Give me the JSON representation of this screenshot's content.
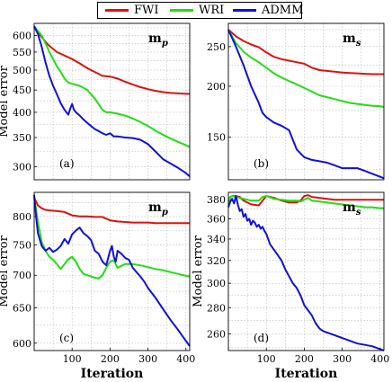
{
  "legend": {
    "items": [
      {
        "label": "FWI",
        "color": "#e01010"
      },
      {
        "label": "WRI",
        "color": "#20e010"
      },
      {
        "label": "ADMM",
        "color": "#1010e0"
      }
    ]
  },
  "chart_data": [
    {
      "type": "line",
      "panel_tag": "(a)",
      "corner_label": "m_p",
      "ylabel": "Model error",
      "xlabel": "",
      "xlim": [
        0,
        410
      ],
      "ylim": [
        280,
        640
      ],
      "y_scale": "log",
      "yticks": [
        300,
        350,
        400,
        450,
        500,
        550,
        600
      ],
      "grid": true,
      "series": [
        {
          "name": "FWI",
          "color": "#e01010",
          "x": [
            0,
            10,
            20,
            30,
            40,
            60,
            80,
            100,
            120,
            140,
            160,
            180,
            200,
            220,
            240,
            260,
            280,
            300,
            320,
            340,
            360,
            380,
            400,
            410
          ],
          "y": [
            630,
            610,
            595,
            580,
            568,
            550,
            540,
            530,
            518,
            505,
            495,
            485,
            483,
            478,
            470,
            463,
            457,
            452,
            448,
            445,
            443,
            442,
            441,
            441
          ]
        },
        {
          "name": "WRI",
          "color": "#20e010",
          "x": [
            0,
            10,
            20,
            30,
            40,
            50,
            60,
            70,
            80,
            90,
            100,
            120,
            140,
            160,
            180,
            190,
            200,
            220,
            240,
            260,
            280,
            300,
            320,
            340,
            360,
            380,
            400,
            410
          ],
          "y": [
            630,
            615,
            600,
            575,
            550,
            530,
            510,
            495,
            478,
            468,
            465,
            460,
            450,
            430,
            405,
            400,
            400,
            397,
            393,
            387,
            380,
            372,
            363,
            355,
            348,
            342,
            336,
            333
          ]
        },
        {
          "name": "ADMM",
          "color": "#1010e0",
          "x": [
            0,
            10,
            20,
            30,
            40,
            50,
            60,
            70,
            80,
            90,
            95,
            100,
            105,
            110,
            120,
            130,
            140,
            150,
            160,
            170,
            180,
            190,
            200,
            210,
            220,
            240,
            260,
            280,
            300,
            320,
            340,
            360,
            380,
            400,
            410
          ],
          "y": [
            630,
            605,
            565,
            520,
            485,
            460,
            440,
            420,
            405,
            395,
            408,
            418,
            405,
            400,
            393,
            385,
            378,
            372,
            366,
            362,
            358,
            355,
            358,
            352,
            352,
            350,
            349,
            346,
            338,
            325,
            312,
            305,
            298,
            290,
            285
          ]
        }
      ]
    },
    {
      "type": "line",
      "panel_tag": "(b)",
      "corner_label": "m_s",
      "ylabel": "",
      "xlabel": "",
      "xlim": [
        0,
        410
      ],
      "ylim": [
        118,
        285
      ],
      "y_scale": "log",
      "yticks": [
        150,
        200,
        250
      ],
      "grid": true,
      "series": [
        {
          "name": "FWI",
          "color": "#e01010",
          "x": [
            0,
            20,
            40,
            60,
            80,
            100,
            120,
            140,
            160,
            180,
            200,
            220,
            240,
            260,
            280,
            300,
            320,
            340,
            360,
            380,
            400,
            410
          ],
          "y": [
            275,
            265,
            258,
            253,
            249,
            242,
            236,
            233,
            231,
            229,
            227,
            222,
            219,
            218,
            217,
            216,
            215.5,
            215,
            214.5,
            214,
            214,
            214
          ]
        },
        {
          "name": "WRI",
          "color": "#20e010",
          "x": [
            0,
            20,
            40,
            60,
            80,
            100,
            120,
            140,
            160,
            180,
            200,
            220,
            240,
            260,
            280,
            300,
            320,
            340,
            360,
            380,
            400,
            410
          ],
          "y": [
            275,
            255,
            243,
            235,
            229,
            222,
            215,
            210,
            206,
            202,
            198,
            194,
            190,
            188,
            186,
            184,
            182,
            181,
            180,
            179,
            178.5,
            178
          ]
        },
        {
          "name": "ADMM",
          "color": "#1010e0",
          "x": [
            0,
            20,
            40,
            60,
            80,
            90,
            100,
            120,
            140,
            160,
            180,
            200,
            220,
            240,
            260,
            280,
            300,
            320,
            340,
            360,
            380,
            400,
            410
          ],
          "y": [
            275,
            250,
            225,
            200,
            182,
            172,
            168,
            163,
            160,
            156,
            140,
            134,
            132,
            131,
            130,
            128,
            126,
            126,
            126,
            124,
            122,
            120,
            119
          ]
        }
      ]
    },
    {
      "type": "line",
      "panel_tag": "(c)",
      "corner_label": "m_p",
      "ylabel": "Model error",
      "xlabel": "Iteration",
      "xlim": [
        0,
        410
      ],
      "ylim": [
        590,
        845
      ],
      "y_scale": "log",
      "yticks": [
        600,
        650,
        700,
        750,
        800
      ],
      "xticks": [
        100,
        200,
        300,
        400
      ],
      "grid": true,
      "series": [
        {
          "name": "FWI",
          "color": "#e01010",
          "x": [
            0,
            10,
            20,
            30,
            40,
            60,
            80,
            100,
            120,
            140,
            160,
            180,
            200,
            220,
            240,
            260,
            280,
            300,
            320,
            340,
            360,
            380,
            400,
            410
          ],
          "y": [
            835,
            820,
            815,
            812,
            811,
            810,
            808,
            802,
            800,
            800,
            799,
            799,
            793,
            791,
            790,
            789,
            789,
            789,
            788,
            788,
            788,
            788,
            788,
            788
          ]
        },
        {
          "name": "WRI",
          "color": "#20e010",
          "x": [
            0,
            10,
            20,
            30,
            40,
            50,
            60,
            70,
            80,
            90,
            100,
            110,
            120,
            130,
            140,
            150,
            160,
            170,
            180,
            190,
            200,
            210,
            220,
            230,
            240,
            260,
            280,
            300,
            320,
            340,
            360,
            380,
            400,
            410
          ],
          "y": [
            835,
            790,
            755,
            740,
            730,
            725,
            718,
            710,
            718,
            726,
            730,
            722,
            710,
            702,
            700,
            698,
            696,
            695,
            700,
            712,
            722,
            724,
            712,
            715,
            718,
            718,
            716,
            713,
            710,
            708,
            705,
            702,
            699,
            698
          ]
        },
        {
          "name": "ADMM",
          "color": "#1010e0",
          "x": [
            0,
            5,
            10,
            20,
            30,
            40,
            50,
            60,
            70,
            80,
            90,
            100,
            110,
            120,
            130,
            140,
            150,
            160,
            170,
            180,
            190,
            200,
            205,
            210,
            215,
            220,
            230,
            240,
            250,
            260,
            270,
            280,
            290,
            300,
            320,
            340,
            360,
            380,
            400,
            410
          ],
          "y": [
            840,
            800,
            770,
            748,
            740,
            745,
            738,
            742,
            748,
            760,
            752,
            768,
            775,
            780,
            770,
            765,
            758,
            740,
            735,
            722,
            716,
            740,
            748,
            730,
            722,
            740,
            735,
            728,
            725,
            712,
            705,
            698,
            690,
            680,
            665,
            648,
            632,
            618,
            603,
            596
          ]
        }
      ]
    },
    {
      "type": "line",
      "panel_tag": "(d)",
      "corner_label": "m_s",
      "ylabel": "Model error",
      "xlabel": "Iteration",
      "xlim": [
        0,
        410
      ],
      "ylim": [
        248,
        388
      ],
      "y_scale": "log",
      "yticks": [
        260,
        280,
        300,
        320,
        340,
        360,
        380
      ],
      "xticks": [
        100,
        200,
        300,
        400
      ],
      "grid": true,
      "series": [
        {
          "name": "FWI",
          "color": "#e01010",
          "x": [
            0,
            5,
            10,
            20,
            30,
            40,
            60,
            80,
            100,
            120,
            140,
            160,
            180,
            190,
            200,
            210,
            220,
            240,
            260,
            280,
            300,
            320,
            340,
            360,
            380,
            400,
            410
          ],
          "y": [
            378,
            383,
            384,
            384,
            383,
            379,
            375,
            374,
            384,
            382,
            379,
            377,
            377,
            379,
            384,
            385,
            383,
            382,
            381,
            380,
            380,
            380,
            380,
            380,
            380,
            380,
            380
          ]
        },
        {
          "name": "WRI",
          "color": "#20e010",
          "x": [
            0,
            5,
            10,
            20,
            30,
            40,
            60,
            80,
            90,
            100,
            120,
            140,
            160,
            180,
            190,
            200,
            210,
            220,
            240,
            260,
            280,
            300,
            320,
            340,
            360,
            380,
            400,
            410
          ],
          "y": [
            378,
            383,
            384,
            383,
            382,
            381,
            379,
            379,
            383,
            384,
            381,
            380,
            379,
            379,
            378,
            380,
            382,
            379,
            378,
            377,
            376,
            375,
            374,
            373,
            372,
            372,
            371,
            371
          ]
        },
        {
          "name": "ADMM",
          "color": "#1010e0",
          "x": [
            0,
            5,
            10,
            15,
            20,
            25,
            30,
            35,
            40,
            45,
            50,
            55,
            60,
            65,
            70,
            75,
            80,
            85,
            90,
            95,
            100,
            110,
            120,
            130,
            140,
            150,
            160,
            170,
            180,
            190,
            200,
            210,
            220,
            230,
            240,
            250,
            260,
            280,
            300,
            320,
            340,
            360,
            380,
            400,
            410
          ],
          "y": [
            372,
            378,
            381,
            376,
            384,
            375,
            368,
            370,
            362,
            365,
            358,
            360,
            354,
            358,
            356,
            352,
            354,
            350,
            352,
            348,
            345,
            335,
            330,
            325,
            320,
            312,
            306,
            300,
            296,
            290,
            282,
            278,
            274,
            268,
            264,
            262,
            261,
            259,
            257,
            255,
            253,
            252,
            251,
            249,
            248
          ]
        }
      ]
    }
  ]
}
